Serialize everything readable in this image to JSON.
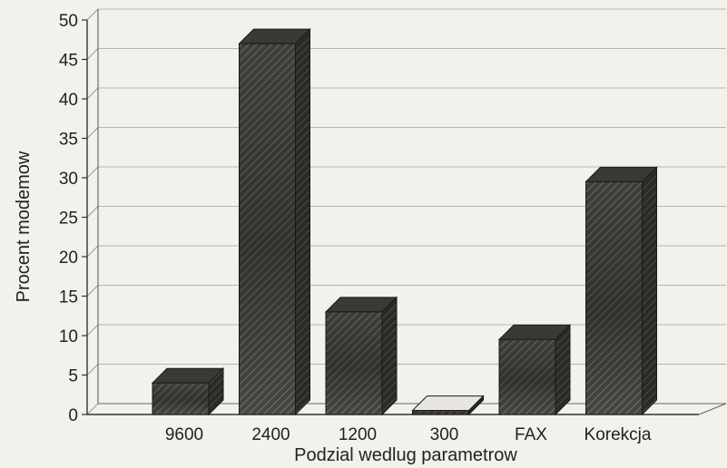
{
  "chart_data": {
    "type": "bar",
    "style": "3d-hatched",
    "categories": [
      "9600",
      "2400",
      "1200",
      "300",
      "FAX",
      "Korekcja"
    ],
    "values": [
      4,
      47,
      13,
      0.5,
      9.5,
      29.5
    ],
    "xlabel": "Podzial wedlug parametrow",
    "ylabel": "Procent modemow",
    "ylim": [
      0,
      50
    ],
    "yticks": [
      "0",
      "5",
      "10",
      "15",
      "20",
      "25",
      "30",
      "35",
      "40",
      "45",
      "50"
    ],
    "grid": true,
    "legend": "none"
  }
}
